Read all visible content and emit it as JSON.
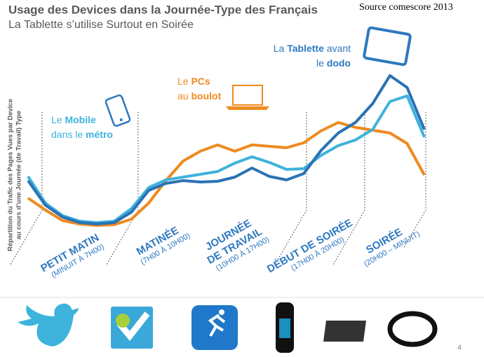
{
  "chart_data": {
    "type": "line",
    "title": "Usage des Devices dans la Journée-Type des Français",
    "subtitle": "La Tablette s’utilise Surtout en Soirée",
    "source": "Source comescore 2013",
    "y_label": [
      "Répartition du Trafic des Pages Vues par Device",
      "au cours d’une Journée (de Travail) Type"
    ],
    "categories": [
      null,
      null,
      null,
      null,
      null,
      null,
      null,
      null,
      null,
      null,
      null,
      null,
      null,
      null,
      null,
      null,
      null,
      null,
      null,
      null,
      null,
      null,
      null,
      null
    ],
    "ylim": [
      0,
      100
    ],
    "series": [
      {
        "color": "#ee8a1f",
        "values": [
          22.8,
          16,
          10,
          8,
          7.2,
          7.6,
          10.8,
          20,
          32.8,
          44,
          49.6,
          53.2,
          49.6,
          53.2,
          52.4,
          51.6,
          54.4,
          61.2,
          66,
          63.2,
          61.6,
          60,
          54,
          36
        ]
      },
      {
        "color": "#3db3dc",
        "values": [
          35.2,
          20,
          12.8,
          9.6,
          8.8,
          9.6,
          16.8,
          28.8,
          33.2,
          34.8,
          36.4,
          38,
          42.8,
          46.4,
          43.2,
          39.2,
          39.6,
          47.2,
          52.8,
          56,
          62,
          78,
          81.2,
          57.6
        ]
      },
      {
        "color": "#2a72b5",
        "values": [
          32.8,
          18.8,
          12,
          8.8,
          8,
          8.8,
          14.8,
          27.2,
          31.2,
          32.8,
          32,
          32.4,
          34.8,
          40,
          35.2,
          33.2,
          36.8,
          50,
          60,
          66,
          76.8,
          92.8,
          86,
          62
        ]
      }
    ],
    "annotations": [
      {
        "color": "#3db3dc",
        "lines": [
          [
            {
              "t": "Le "
            },
            {
              "t": "Mobile",
              "bold": true
            }
          ],
          [
            {
              "t": "dans le "
            },
            {
              "t": "métro",
              "bold": true
            }
          ]
        ]
      },
      {
        "color": "#ee8a1f",
        "lines": [
          [
            {
              "t": "Le "
            },
            {
              "t": "PCs",
              "bold": true
            }
          ],
          [
            {
              "t": "au "
            },
            {
              "t": "boulot",
              "bold": true
            }
          ]
        ]
      },
      {
        "color": "#2e78c0",
        "lines": [
          [
            {
              "t": "La "
            },
            {
              "t": "Tablette",
              "bold": true
            },
            {
              "t": " avant"
            }
          ],
          [
            {
              "t": "le "
            },
            {
              "t": "dodo",
              "bold": true
            }
          ]
        ]
      }
    ],
    "periods": [
      {
        "name": [
          "PETIT MATIN"
        ],
        "hours": "(MINUIT À 7H00)"
      },
      {
        "name": [
          "MATINÉE"
        ],
        "hours": "(7H00 À 10H00)"
      },
      {
        "name": [
          "JOURNÉE",
          "DE TRAVAIL"
        ],
        "hours": "(10H00 À 17H00)"
      },
      {
        "name": [
          "DÉBUT DE SOIRÉE"
        ],
        "hours": "(17H00 À 20H00)"
      },
      {
        "name": [
          "SOIRÉE"
        ],
        "hours": "(20H00 – MINUIT)"
      }
    ],
    "page_number": "4"
  }
}
